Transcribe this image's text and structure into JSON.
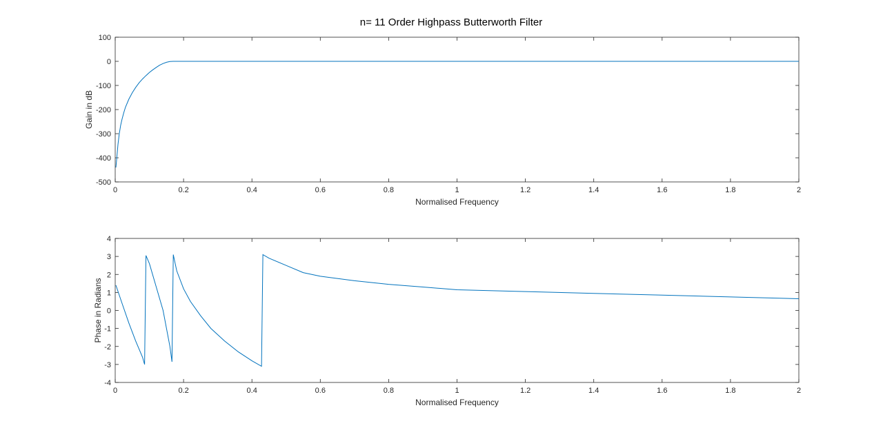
{
  "figure": {
    "title": "n= 11 Order Highpass Butterworth Filter"
  },
  "chart_data": [
    {
      "type": "line",
      "title": "n= 11 Order Highpass Butterworth Filter",
      "xlabel": "Normalised Frequency",
      "ylabel": "Gain in dB",
      "xlim": [
        0,
        2
      ],
      "ylim": [
        -500,
        100
      ],
      "xticks": [
        0,
        0.2,
        0.4,
        0.6,
        0.8,
        1,
        1.2,
        1.4,
        1.6,
        1.8,
        2
      ],
      "xtick_labels": [
        "0",
        "0.2",
        "0.4",
        "0.6",
        "0.8",
        "1",
        "1.2",
        "1.4",
        "1.6",
        "1.8",
        "2"
      ],
      "yticks": [
        -500,
        -400,
        -300,
        -200,
        -100,
        0,
        100
      ],
      "ytick_labels": [
        "-500",
        "-400",
        "-300",
        "-200",
        "-100",
        "0",
        "100"
      ],
      "grid": false,
      "line_color": "#0072BD",
      "series": [
        {
          "x": [
            0.002,
            0.004,
            0.008,
            0.012,
            0.016,
            0.02,
            0.025,
            0.03,
            0.04,
            0.05,
            0.06,
            0.07,
            0.08,
            0.09,
            0.1,
            0.11,
            0.12,
            0.13,
            0.14,
            0.15,
            0.16,
            0.17,
            0.2,
            0.3,
            0.5,
            1.0,
            1.5,
            2.0
          ],
          "y": [
            -440,
            -410,
            -345,
            -300,
            -265,
            -240,
            -213,
            -190,
            -157,
            -130,
            -108,
            -89,
            -73,
            -59,
            -46,
            -35,
            -25,
            -16,
            -9,
            -4,
            -1,
            0,
            0,
            0,
            0,
            0,
            0,
            0
          ]
        }
      ]
    },
    {
      "type": "line",
      "title": "",
      "xlabel": "Normalised Frequency",
      "ylabel": "Phase in Radians",
      "xlim": [
        0,
        2
      ],
      "ylim": [
        -4,
        4
      ],
      "xticks": [
        0,
        0.2,
        0.4,
        0.6,
        0.8,
        1,
        1.2,
        1.4,
        1.6,
        1.8,
        2
      ],
      "xtick_labels": [
        "0",
        "0.2",
        "0.4",
        "0.6",
        "0.8",
        "1",
        "1.2",
        "1.4",
        "1.6",
        "1.8",
        "2"
      ],
      "yticks": [
        -4,
        -3,
        -2,
        -1,
        0,
        1,
        2,
        3,
        4
      ],
      "ytick_labels": [
        "-4",
        "-3",
        "-2",
        "-1",
        "0",
        "1",
        "2",
        "3",
        "4"
      ],
      "grid": false,
      "line_color": "#0072BD",
      "series": [
        {
          "x": [
            0.002,
            0.02,
            0.04,
            0.06,
            0.08,
            0.086,
            0.09,
            0.1,
            0.12,
            0.14,
            0.16,
            0.166,
            0.17,
            0.18,
            0.2,
            0.22,
            0.25,
            0.28,
            0.32,
            0.36,
            0.4,
            0.428,
            0.432,
            0.45,
            0.5,
            0.55,
            0.6,
            0.7,
            0.8,
            0.9,
            1.0,
            1.2,
            1.4,
            1.6,
            1.8,
            2.0
          ],
          "y": [
            1.4,
            0.4,
            -0.7,
            -1.7,
            -2.6,
            -3.0,
            3.05,
            2.6,
            1.3,
            0.0,
            -2.0,
            -2.85,
            3.1,
            2.2,
            1.2,
            0.5,
            -0.3,
            -1.0,
            -1.7,
            -2.3,
            -2.8,
            -3.1,
            3.1,
            2.9,
            2.5,
            2.1,
            1.9,
            1.65,
            1.45,
            1.3,
            1.15,
            1.05,
            0.95,
            0.85,
            0.75,
            0.65
          ]
        }
      ]
    }
  ]
}
